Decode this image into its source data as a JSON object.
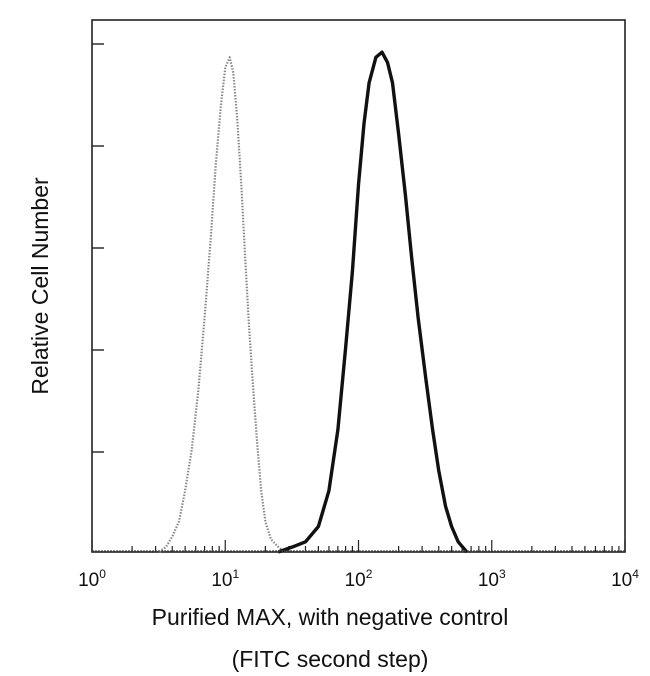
{
  "chart_data": {
    "type": "line",
    "title": "",
    "xlabel": "Purified MAX, with negative control",
    "xlabel_line2": "(FITC second step)",
    "ylabel": "Relative Cell Number",
    "x_scale": "log",
    "xlim": [
      1,
      10000
    ],
    "ylim": [
      0,
      1
    ],
    "x_ticks": [
      {
        "base": "10",
        "exp": "0"
      },
      {
        "base": "10",
        "exp": "1"
      },
      {
        "base": "10",
        "exp": "2"
      },
      {
        "base": "10",
        "exp": "3"
      },
      {
        "base": "10",
        "exp": "4"
      }
    ],
    "y_tick_count": 5,
    "grid": false,
    "legend": "none",
    "series": [
      {
        "style": "dotted-gray",
        "color": "#888888",
        "points": [
          [
            3.2,
            0.0
          ],
          [
            3.6,
            0.01
          ],
          [
            4.0,
            0.03
          ],
          [
            4.5,
            0.06
          ],
          [
            5.0,
            0.12
          ],
          [
            5.6,
            0.2
          ],
          [
            6.3,
            0.32
          ],
          [
            7.0,
            0.46
          ],
          [
            7.8,
            0.62
          ],
          [
            8.5,
            0.76
          ],
          [
            9.3,
            0.88
          ],
          [
            10.0,
            0.95
          ],
          [
            10.8,
            0.97
          ],
          [
            11.5,
            0.94
          ],
          [
            12.3,
            0.85
          ],
          [
            13.2,
            0.72
          ],
          [
            14.1,
            0.58
          ],
          [
            15.1,
            0.44
          ],
          [
            16.2,
            0.32
          ],
          [
            17.4,
            0.21
          ],
          [
            18.6,
            0.12
          ],
          [
            20.0,
            0.06
          ],
          [
            22.0,
            0.025
          ],
          [
            25.0,
            0.01
          ],
          [
            28.0,
            0.0
          ]
        ]
      },
      {
        "style": "solid-black",
        "color": "#111111",
        "points": [
          [
            25.0,
            0.0
          ],
          [
            32.0,
            0.01
          ],
          [
            40.0,
            0.02
          ],
          [
            50.0,
            0.05
          ],
          [
            60.0,
            0.12
          ],
          [
            70.0,
            0.24
          ],
          [
            80.0,
            0.4
          ],
          [
            90.0,
            0.55
          ],
          [
            100.0,
            0.72
          ],
          [
            110.0,
            0.84
          ],
          [
            120.0,
            0.92
          ],
          [
            135.0,
            0.97
          ],
          [
            150.0,
            0.98
          ],
          [
            165.0,
            0.96
          ],
          [
            180.0,
            0.92
          ],
          [
            200.0,
            0.82
          ],
          [
            225.0,
            0.7
          ],
          [
            250.0,
            0.58
          ],
          [
            280.0,
            0.46
          ],
          [
            320.0,
            0.34
          ],
          [
            360.0,
            0.24
          ],
          [
            400.0,
            0.16
          ],
          [
            450.0,
            0.09
          ],
          [
            500.0,
            0.05
          ],
          [
            560.0,
            0.02
          ],
          [
            650.0,
            0.0
          ]
        ]
      }
    ]
  }
}
